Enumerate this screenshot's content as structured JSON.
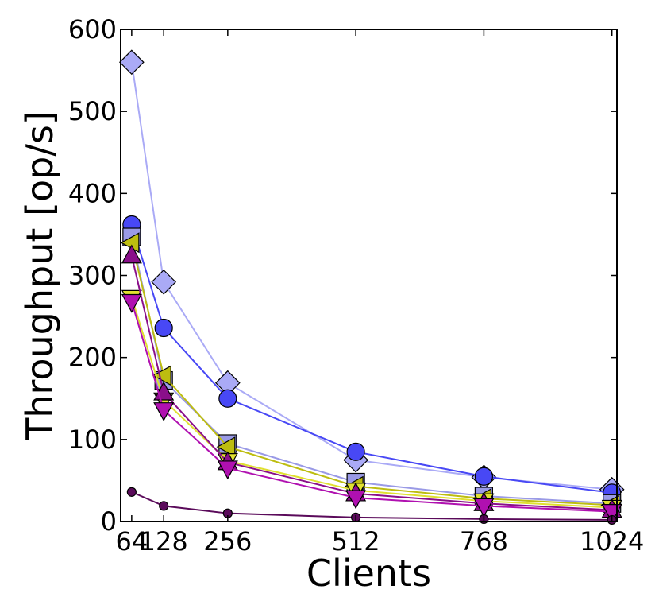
{
  "chart_data": {
    "type": "line",
    "xlabel": "Clients",
    "ylabel": "Throughput [op/s]",
    "x": [
      64,
      128,
      256,
      512,
      768,
      1024
    ],
    "x_tick_labels": [
      "64",
      "128",
      "256",
      "512",
      "768",
      "1024"
    ],
    "xlim": [
      42,
      1034
    ],
    "ylim": [
      0,
      600
    ],
    "y_ticks": [
      0,
      100,
      200,
      300,
      400,
      500,
      600
    ],
    "y_tick_labels": [
      "0",
      "100",
      "200",
      "300",
      "400",
      "500",
      "600"
    ],
    "grid": false,
    "series": [
      {
        "marker": "diamond",
        "color": "#aaaaf6",
        "values": [
          560,
          292,
          169,
          75,
          54,
          39
        ]
      },
      {
        "marker": "circle",
        "color": "#4848f5",
        "values": [
          362,
          236,
          150,
          85,
          55,
          35
        ]
      },
      {
        "marker": "square",
        "color": "#9a9ae6",
        "values": [
          347,
          172,
          95,
          48,
          31,
          22
        ]
      },
      {
        "marker": "triangle-left",
        "color": "#bdbd10",
        "values": [
          340,
          178,
          91,
          43,
          28,
          20
        ]
      },
      {
        "marker": "triangle-down",
        "color": "#e0e030",
        "values": [
          273,
          148,
          74,
          38,
          25,
          17
        ]
      },
      {
        "marker": "triangle-up",
        "color": "#8a0f8a",
        "values": [
          324,
          157,
          72,
          34,
          22,
          14
        ]
      },
      {
        "marker": "triangle-down",
        "color": "#b010b0",
        "values": [
          268,
          136,
          65,
          29,
          19,
          12
        ]
      },
      {
        "marker": "small-circle",
        "color": "#5a0a5a",
        "values": [
          36,
          19,
          10,
          5,
          3,
          2
        ]
      }
    ]
  }
}
